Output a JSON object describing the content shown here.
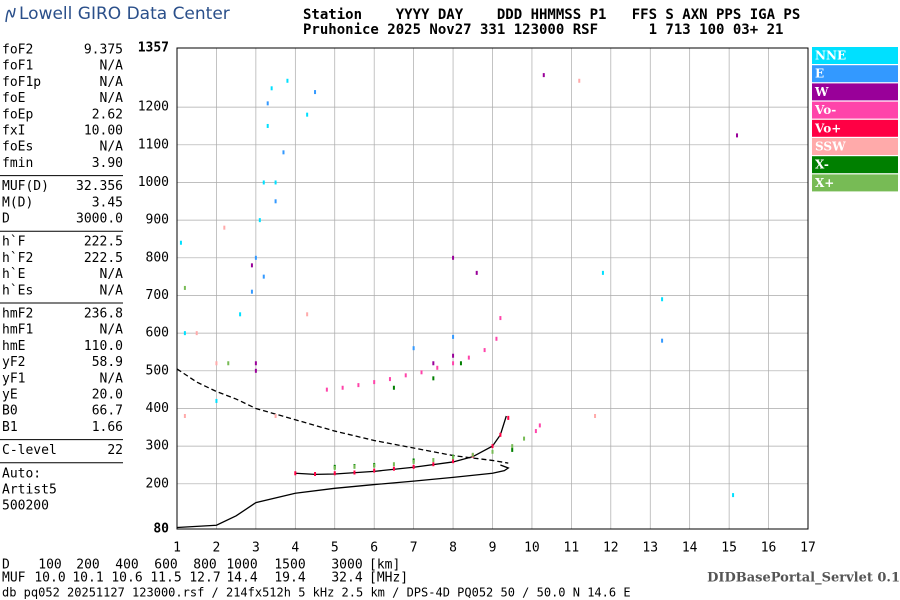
{
  "header": {
    "logo": "Lowell GIRO Data Center",
    "line1": "Station    YYYY DAY    DDD HHMMSS P1   FFS S AXN PPS IGA PS",
    "line2": "Pruhonice 2025 Nov27 331 123000 RSF      1 713 100 03+ 21"
  },
  "parameters": [
    [
      [
        "foF2",
        "9.375"
      ],
      [
        "foF1",
        "N/A"
      ],
      [
        "foF1p",
        "N/A"
      ],
      [
        "foE",
        "N/A"
      ],
      [
        "foEp",
        "2.62"
      ],
      [
        "fxI",
        "10.00"
      ],
      [
        "foEs",
        "N/A"
      ],
      [
        "fmin",
        "3.90"
      ]
    ],
    [
      [
        "MUF(D)",
        "32.356"
      ],
      [
        "M(D)",
        "3.45"
      ],
      [
        "D",
        "3000.0"
      ]
    ],
    [
      [
        "h`F",
        "222.5"
      ],
      [
        "h`F2",
        "222.5"
      ],
      [
        "h`E",
        "N/A"
      ],
      [
        "h`Es",
        "N/A"
      ]
    ],
    [
      [
        "hmF2",
        "236.8"
      ],
      [
        "hmF1",
        "N/A"
      ],
      [
        "hmE",
        "110.0"
      ],
      [
        "yF2",
        "58.9"
      ],
      [
        "yF1",
        "N/A"
      ],
      [
        "yE",
        "20.0"
      ],
      [
        "B0",
        "66.7"
      ],
      [
        "B1",
        "1.66"
      ]
    ],
    [
      [
        "C-level",
        "22"
      ]
    ]
  ],
  "autoscaling": [
    "Auto:",
    "Artist5",
    "500200"
  ],
  "chart_data": {
    "type": "scatter",
    "xlim": [
      1,
      17
    ],
    "xticks": [
      1,
      2,
      3,
      4,
      5,
      6,
      7,
      8,
      9,
      10,
      11,
      12,
      13,
      14,
      15,
      16,
      17
    ],
    "ylim": [
      80,
      1357
    ],
    "yticks": [
      80,
      200,
      300,
      400,
      500,
      600,
      700,
      800,
      900,
      1000,
      1100,
      1200,
      1357
    ],
    "grid": true,
    "series": [
      {
        "name": "NNE",
        "color": "#00e0ff",
        "x": [
          2.6,
          3.1,
          3.2,
          3.3,
          3.4,
          3.5,
          3.8,
          4.3,
          1.1,
          1.2,
          2,
          11.8,
          13.3,
          15.1
        ],
        "y": [
          650,
          900,
          1000,
          1150,
          1250,
          1000,
          1270,
          1180,
          840,
          600,
          420,
          760,
          690,
          170
        ]
      },
      {
        "name": "E",
        "color": "#3399ff",
        "x": [
          3,
          3.3,
          3.5,
          3.7,
          4.5,
          3.2,
          2.9,
          13.3,
          7,
          8
        ],
        "y": [
          800,
          1210,
          950,
          1080,
          1240,
          750,
          710,
          580,
          560,
          590
        ]
      },
      {
        "name": "W",
        "color": "#990099",
        "x": [
          3,
          3,
          2.9,
          7.5,
          8,
          15.2,
          10.3,
          8,
          8.6
        ],
        "y": [
          500,
          520,
          780,
          520,
          540,
          1125,
          1285,
          800,
          760
        ]
      },
      {
        "name": "Vo-",
        "color": "#ff44aa",
        "x": [
          4.8,
          5.2,
          5.6,
          6,
          6.4,
          6.8,
          7.2,
          7.6,
          8,
          8.4,
          8.8,
          9.1,
          9.2,
          10.1,
          10.2
        ],
        "y": [
          450,
          455,
          462,
          470,
          478,
          488,
          496,
          508,
          520,
          535,
          555,
          585,
          640,
          340,
          355
        ]
      },
      {
        "name": "Vo+",
        "color": "#ff0044",
        "x": [
          4,
          4.5,
          5,
          5.5,
          6,
          6.5,
          7,
          7.5,
          8,
          8.5,
          9,
          9.2,
          9.4
        ],
        "y": [
          228,
          226,
          228,
          230,
          235,
          240,
          245,
          252,
          260,
          275,
          300,
          330,
          375
        ]
      },
      {
        "name": "SSW",
        "color": "#ffaaaa",
        "x": [
          1.2,
          1.5,
          2,
          2.2,
          3.5,
          11.2,
          11.6,
          4.3
        ],
        "y": [
          380,
          600,
          520,
          880,
          380,
          1270,
          380,
          650
        ]
      },
      {
        "name": "X-",
        "color": "#007f00",
        "x": [
          5,
          5.5,
          6,
          7,
          8,
          6.5,
          7.5,
          8.2,
          9.5
        ],
        "y": [
          245,
          247,
          250,
          262,
          272,
          455,
          480,
          520,
          290
        ]
      },
      {
        "name": "X+",
        "color": "#77bb55",
        "x": [
          5,
          5.5,
          6,
          6.5,
          7,
          7.5,
          8,
          8.5,
          9,
          9.5,
          9.8,
          1.2,
          2.3
        ],
        "y": [
          242,
          245,
          248,
          252,
          258,
          263,
          270,
          277,
          285,
          300,
          320,
          720,
          520
        ]
      }
    ],
    "traces": [
      {
        "color": "#000000",
        "style": "solid",
        "x": [
          1,
          2,
          2.5,
          3,
          4,
          5,
          6,
          7,
          8,
          9,
          9.3,
          9.4,
          9.2
        ],
        "y": [
          84,
          90,
          115,
          150,
          175,
          188,
          198,
          207,
          217,
          228,
          235,
          242,
          250
        ]
      },
      {
        "color": "#000000",
        "style": "solid",
        "x": [
          4,
          4.5,
          5,
          6,
          7,
          8,
          8.5,
          9,
          9.2,
          9.35
        ],
        "y": [
          228,
          225,
          226,
          233,
          244,
          258,
          272,
          300,
          330,
          380
        ]
      },
      {
        "color": "#000000",
        "style": "dashed",
        "x": [
          1,
          1.5,
          2,
          2.5,
          3,
          4,
          5,
          6,
          7,
          8,
          9,
          9.4
        ],
        "y": [
          505,
          470,
          445,
          425,
          400,
          370,
          340,
          315,
          295,
          275,
          262,
          255
        ]
      }
    ]
  },
  "muf_table": {
    "d_label": "D",
    "d": [
      "100",
      "200",
      "400",
      "600",
      "800",
      "1000",
      "1500",
      "3000"
    ],
    "d_unit": "[km]",
    "muf_label": "MUF",
    "muf": [
      "10.0",
      "10.1",
      "10.6",
      "11.5",
      "12.7",
      "14.4",
      "19.4",
      "32.4"
    ],
    "muf_unit": "[MHz]"
  },
  "servlet": "DIDBasePortal_Servlet 0.1",
  "footer": "db pq052 20251127 123000.rsf / 214fx512h 5 kHz 2.5 km / DPS-4D PQ052 50 / 50.0 N 14.6 E"
}
